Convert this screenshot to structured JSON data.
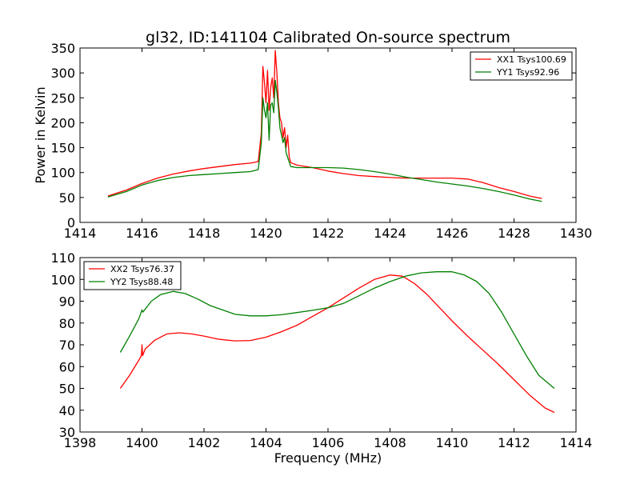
{
  "chart_data": [
    {
      "type": "line",
      "title": "gl32, ID:141104 Calibrated On-source spectrum",
      "xlabel": "",
      "ylabel": "Power in Kelvin",
      "xlim": [
        1414,
        1430
      ],
      "ylim": [
        0,
        350
      ],
      "xticks": [
        1414,
        1416,
        1418,
        1420,
        1422,
        1424,
        1426,
        1428,
        1430
      ],
      "yticks": [
        0,
        50,
        100,
        150,
        200,
        250,
        300,
        350
      ],
      "grid": false,
      "legend_position": "top-right",
      "series": [
        {
          "name": "XX1 Tsys100.69",
          "color": "#ff0000",
          "x": [
            1414.9,
            1415.5,
            1416,
            1416.5,
            1417,
            1417.5,
            1418,
            1418.5,
            1419,
            1419.5,
            1419.75,
            1419.85,
            1419.9,
            1419.95,
            1420.0,
            1420.05,
            1420.1,
            1420.15,
            1420.2,
            1420.25,
            1420.3,
            1420.35,
            1420.4,
            1420.45,
            1420.5,
            1420.55,
            1420.6,
            1420.65,
            1420.7,
            1420.75,
            1420.8,
            1421,
            1421.5,
            1422,
            1422.5,
            1423,
            1423.5,
            1424,
            1424.5,
            1425,
            1425.5,
            1426,
            1426.5,
            1427,
            1427.5,
            1428,
            1428.5,
            1428.9
          ],
          "values": [
            53,
            65,
            78,
            89,
            97,
            103,
            108,
            112,
            116,
            119,
            122,
            180,
            313,
            280,
            240,
            305,
            225,
            270,
            290,
            250,
            345,
            300,
            240,
            210,
            200,
            170,
            190,
            150,
            175,
            130,
            120,
            115,
            110,
            103,
            98,
            94,
            92,
            90,
            89,
            89,
            89,
            89,
            87,
            80,
            70,
            62,
            53,
            48
          ]
        },
        {
          "name": "YY1 Tsys92.96",
          "color": "#008000",
          "x": [
            1414.9,
            1415.5,
            1416,
            1416.5,
            1417,
            1417.5,
            1418,
            1418.5,
            1419,
            1419.5,
            1419.75,
            1419.85,
            1419.9,
            1419.95,
            1420.0,
            1420.05,
            1420.1,
            1420.15,
            1420.2,
            1420.25,
            1420.3,
            1420.35,
            1420.4,
            1420.45,
            1420.5,
            1420.55,
            1420.6,
            1420.65,
            1420.7,
            1420.8,
            1421,
            1421.5,
            1422,
            1422.5,
            1423,
            1423.5,
            1424,
            1424.5,
            1425,
            1425.5,
            1426,
            1426.5,
            1427,
            1427.5,
            1428,
            1428.5,
            1428.9
          ],
          "values": [
            51,
            62,
            75,
            84,
            90,
            94,
            96,
            98,
            100,
            102,
            106,
            160,
            250,
            225,
            210,
            240,
            165,
            235,
            240,
            220,
            285,
            260,
            230,
            190,
            175,
            160,
            170,
            140,
            130,
            112,
            110,
            110,
            110,
            109,
            106,
            102,
            97,
            91,
            86,
            81,
            77,
            73,
            68,
            62,
            55,
            47,
            42
          ]
        }
      ]
    },
    {
      "type": "line",
      "title": "",
      "xlabel": "Frequency (MHz)",
      "ylabel": "",
      "xlim": [
        1398,
        1414
      ],
      "ylim": [
        30,
        110
      ],
      "xticks": [
        1398,
        1400,
        1402,
        1404,
        1406,
        1408,
        1410,
        1412,
        1414
      ],
      "yticks": [
        30,
        40,
        50,
        60,
        70,
        80,
        90,
        100,
        110
      ],
      "grid": false,
      "legend_position": "top-left",
      "series": [
        {
          "name": "XX2 Tsys76.37",
          "color": "#ff0000",
          "x": [
            1399.3,
            1399.6,
            1399.9,
            1399.98,
            1400.0,
            1400.02,
            1400.1,
            1400.4,
            1400.8,
            1401.2,
            1401.6,
            1402.0,
            1402.5,
            1403.0,
            1403.5,
            1404.0,
            1404.5,
            1405.0,
            1405.5,
            1406.0,
            1406.5,
            1407.0,
            1407.5,
            1408.0,
            1408.4,
            1408.8,
            1409.2,
            1409.6,
            1410.0,
            1410.5,
            1411.0,
            1411.5,
            1412.0,
            1412.5,
            1413.0,
            1413.3
          ],
          "values": [
            50,
            56,
            63,
            65,
            70,
            65,
            68,
            72,
            75,
            75.5,
            75,
            74,
            72.5,
            71.8,
            72,
            73.5,
            76,
            79,
            83,
            87,
            91.5,
            96,
            100,
            102,
            101.5,
            98,
            93,
            87,
            81,
            74,
            67.5,
            61,
            54,
            47,
            41,
            39
          ]
        },
        {
          "name": "YY2 Tsys88.48",
          "color": "#008000",
          "x": [
            1399.3,
            1399.6,
            1399.9,
            1400.0,
            1400.03,
            1400.3,
            1400.6,
            1401.0,
            1401.4,
            1401.8,
            1402.2,
            1402.6,
            1403.0,
            1403.5,
            1404.0,
            1404.5,
            1405.0,
            1405.5,
            1406.0,
            1406.5,
            1407.0,
            1407.5,
            1408.0,
            1408.5,
            1409.0,
            1409.5,
            1410.0,
            1410.4,
            1410.8,
            1411.2,
            1411.6,
            1412.0,
            1412.4,
            1412.8,
            1413.3
          ],
          "values": [
            66.5,
            74,
            82,
            86,
            85,
            90,
            93,
            94.5,
            93.5,
            91,
            88,
            86,
            84,
            83.3,
            83.3,
            83.8,
            84.8,
            85.8,
            87,
            89,
            92.5,
            96,
            99,
            101.5,
            103,
            103.5,
            103.5,
            102,
            99,
            93.5,
            85,
            75,
            65,
            56,
            50
          ]
        }
      ]
    }
  ]
}
